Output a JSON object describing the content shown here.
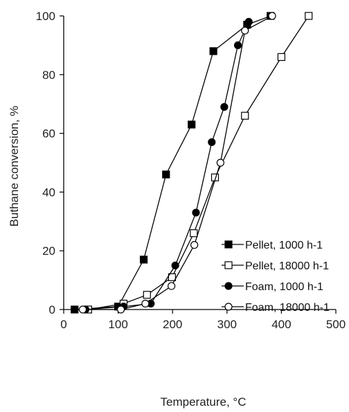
{
  "chart_data": {
    "type": "line",
    "xlabel": "Temperature, °C",
    "ylabel": "Buthane conversion, %",
    "xlim": [
      0,
      500
    ],
    "ylim": [
      0,
      100
    ],
    "x_ticks": [
      0,
      100,
      200,
      300,
      400,
      500
    ],
    "y_ticks": [
      0,
      20,
      40,
      60,
      80,
      100
    ],
    "x_tick_labels": [
      "0",
      "100",
      "200",
      "300",
      "400",
      "500"
    ],
    "y_tick_labels": [
      "0",
      "20",
      "40",
      "60",
      "80",
      "100"
    ],
    "grid": false,
    "legend_position": "bottom-right",
    "series": [
      {
        "name": "Pellet, 1000 h-1",
        "marker": "square-filled",
        "x": [
          20,
          100,
          147,
          188,
          235,
          275,
          337,
          380
        ],
        "y": [
          0,
          1,
          17,
          46,
          63,
          88,
          97,
          100
        ]
      },
      {
        "name": "Pellet, 18000 h-1",
        "marker": "square-open",
        "x": [
          45,
          110,
          153,
          199,
          239,
          278,
          333,
          400,
          450
        ],
        "y": [
          0,
          2,
          5,
          11,
          26,
          45,
          66,
          86,
          100
        ]
      },
      {
        "name": "Foam, 1000 h-1",
        "marker": "circle-filled",
        "x": [
          40,
          110,
          160,
          205,
          243,
          272,
          295,
          320,
          340
        ],
        "y": [
          0,
          1,
          2,
          15,
          33,
          57,
          69,
          90,
          98
        ]
      },
      {
        "name": "Foam, 18000 h-1",
        "marker": "circle-open",
        "x": [
          35,
          105,
          150,
          198,
          240,
          288,
          333,
          383
        ],
        "y": [
          0,
          0,
          2,
          8,
          22,
          50,
          95,
          100
        ]
      }
    ]
  }
}
